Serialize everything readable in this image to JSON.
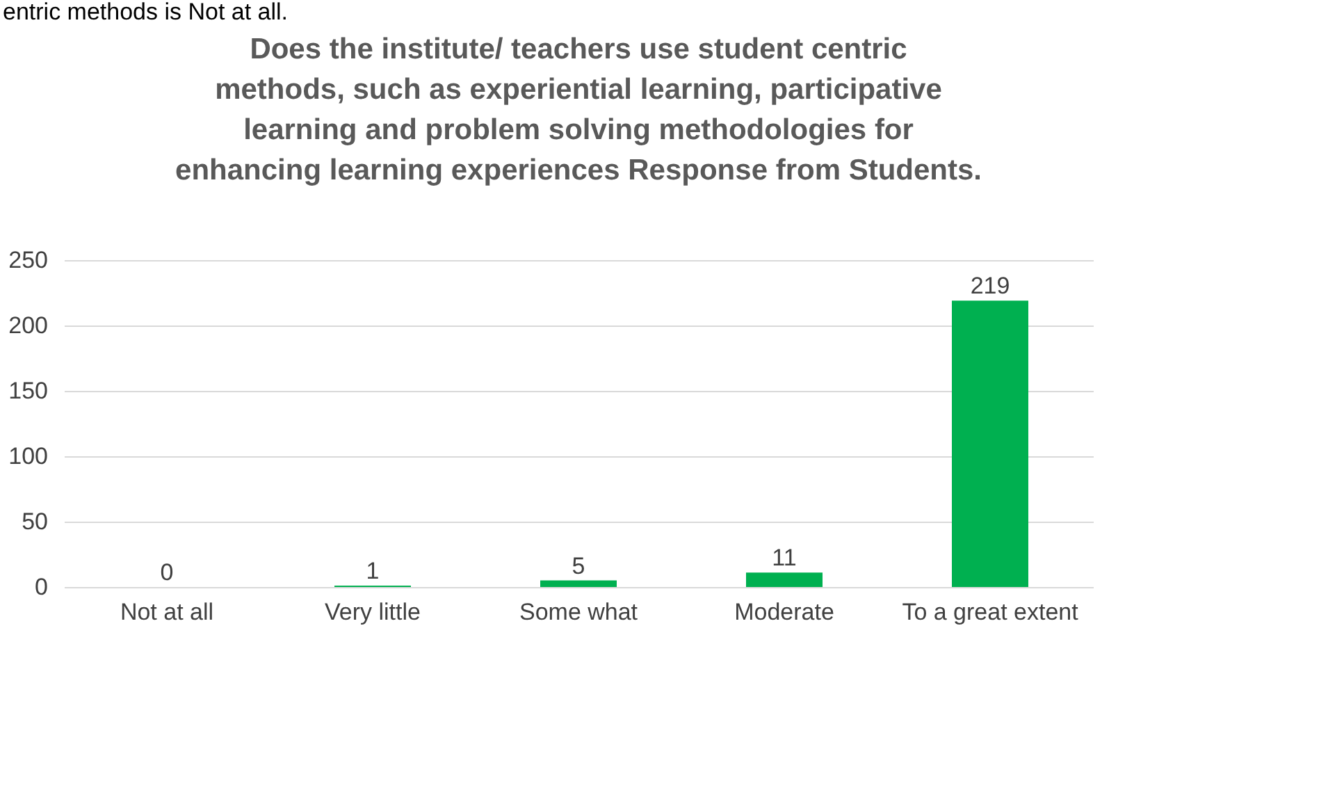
{
  "chart_data": {
    "type": "bar",
    "title": "Does the institute/ teachers use student centric methods, such as experiential learning, participative learning   and problem solving methodologies for enhancing learning experiences Response from Students.",
    "categories": [
      "Not at all",
      "Very little",
      "Some what",
      "Moderate",
      "To a great extent"
    ],
    "values": [
      0,
      1,
      5,
      11,
      219
    ],
    "color": "#00b050",
    "ylim": [
      0,
      250
    ],
    "yticks": [
      0,
      50,
      100,
      150,
      200,
      250
    ],
    "grid": "y",
    "data_labels": true,
    "annotations": [
      "entric methods is Not at all."
    ]
  }
}
